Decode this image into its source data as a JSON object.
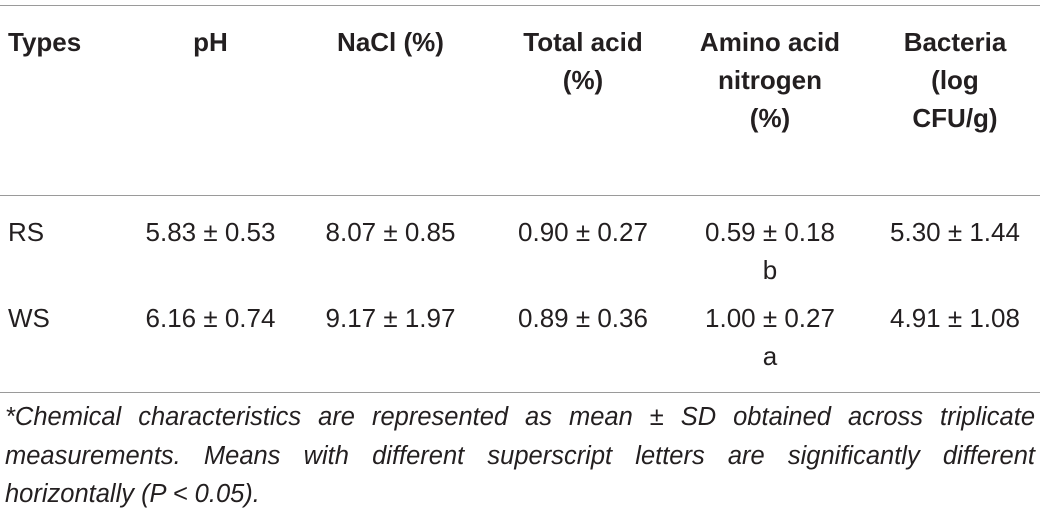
{
  "table": {
    "header": [
      "Types",
      "pH",
      "NaCl (%)",
      "Total acid (%)",
      "Amino acid nitrogen (%)",
      "Bacteria (log CFU/g)"
    ],
    "rows": [
      [
        "RS",
        "5.83 ± 0.53",
        "8.07 ± 0.85",
        "0.90 ± 0.27",
        {
          "text": "0.59 ± 0.18",
          "sup": "b"
        },
        "5.30 ± 1.44"
      ],
      [
        "WS",
        "6.16 ± 0.74",
        "9.17 ± 1.97",
        "0.89 ± 0.36",
        {
          "text": "1.00 ± 0.27",
          "sup": "a"
        },
        "4.91 ± 1.08"
      ]
    ],
    "footnote": "*Chemical characteristics are represented as mean ± SD obtained across triplicate measurements. Means with different superscript letters are significantly different horizontally (P < 0.05)."
  }
}
